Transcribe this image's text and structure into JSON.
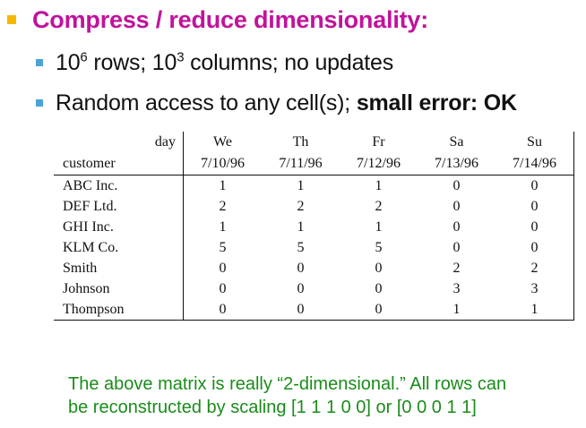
{
  "heading": {
    "text": "Compress / reduce dimensionality:"
  },
  "bullets": {
    "b1": {
      "base1": "10",
      "exp1": "6",
      "mid": " rows; 10",
      "exp2": "3",
      "tail": " columns; no updates"
    },
    "b2": {
      "normal": "Random access to any cell(s); ",
      "bold": "small error: OK"
    }
  },
  "matrix": {
    "corner_top": "day",
    "corner_bottom": "customer",
    "days": [
      "We",
      "Th",
      "Fr",
      "Sa",
      "Su"
    ],
    "dates": [
      "7/10/96",
      "7/11/96",
      "7/12/96",
      "7/13/96",
      "7/14/96"
    ],
    "rows": [
      {
        "customer": "ABC Inc.",
        "values": [
          "1",
          "1",
          "1",
          "0",
          "0"
        ]
      },
      {
        "customer": "DEF Ltd.",
        "values": [
          "2",
          "2",
          "2",
          "0",
          "0"
        ]
      },
      {
        "customer": "GHI Inc.",
        "values": [
          "1",
          "1",
          "1",
          "0",
          "0"
        ]
      },
      {
        "customer": "KLM Co.",
        "values": [
          "5",
          "5",
          "5",
          "0",
          "0"
        ]
      },
      {
        "customer": "Smith",
        "values": [
          "0",
          "0",
          "0",
          "2",
          "2"
        ]
      },
      {
        "customer": "Johnson",
        "values": [
          "0",
          "0",
          "0",
          "3",
          "3"
        ]
      },
      {
        "customer": "Thompson",
        "values": [
          "0",
          "0",
          "0",
          "1",
          "1"
        ]
      }
    ]
  },
  "caption": {
    "line1": "The above matrix is really “2-dimensional.” All rows can",
    "line2": "be reconstructed by scaling [1 1 1 0 0] or [0 0 0 1 1]"
  },
  "colors": {
    "heading": "#c0139c",
    "bullet_l1": "#f5b800",
    "bullet_l2": "#4aa3d8",
    "caption": "#1a8c1a"
  }
}
